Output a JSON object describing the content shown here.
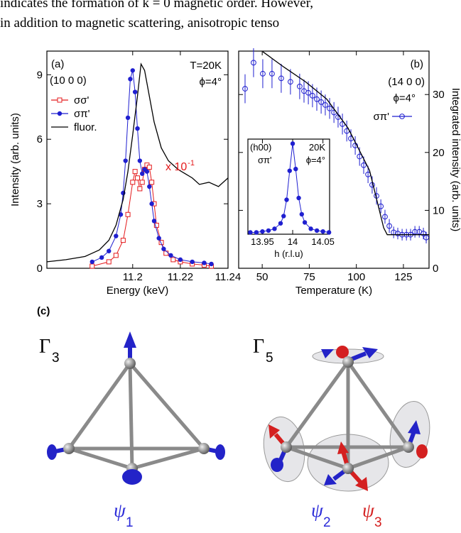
{
  "text": {
    "line1": "indicates the formation of k = 0 magnetic order. However,",
    "line2": "in addition to magnetic scattering, anisotropic tenso"
  },
  "chart_data": [
    {
      "type": "line",
      "xlabel": "Energy (keV)",
      "ylabel": "Intensity (arb. units)",
      "xlim": [
        11.164,
        11.24
      ],
      "ylim": [
        0,
        10.1
      ],
      "xticks": [
        11.2,
        11.22,
        11.24
      ],
      "yticks": [
        0,
        3,
        6,
        9
      ],
      "y_axis_side": "left",
      "annotations": [
        "(a)",
        "(10 0 0)",
        "T=20K",
        "ϕ=4°"
      ],
      "scale_note": {
        "text": "x 10",
        "exponent": "-1",
        "color": "#e41a1c"
      },
      "series": [
        {
          "name": "σσ'",
          "color": "#e41a1c",
          "marker": "open-square",
          "line": true,
          "x": [
            11.183,
            11.19,
            11.193,
            11.196,
            11.198,
            11.2,
            11.201,
            11.202,
            11.203,
            11.204,
            11.205,
            11.206,
            11.207,
            11.208,
            11.209,
            11.21,
            11.212,
            11.214,
            11.217,
            11.22,
            11.225,
            11.23,
            11.233
          ],
          "values": [
            0.1,
            0.3,
            0.6,
            1.3,
            2.5,
            4.0,
            4.5,
            4.2,
            3.7,
            4.0,
            4.6,
            4.8,
            4.7,
            4.0,
            3.0,
            2.0,
            1.2,
            0.7,
            0.4,
            0.3,
            0.2,
            0.15,
            0.1
          ]
        },
        {
          "name": "σπ'",
          "color": "#1f1fd0",
          "marker": "circle",
          "line": true,
          "x": [
            11.183,
            11.187,
            11.19,
            11.193,
            11.195,
            11.196,
            11.197,
            11.198,
            11.199,
            11.2,
            11.201,
            11.202,
            11.203,
            11.204,
            11.205,
            11.206,
            11.207,
            11.208,
            11.209,
            11.211,
            11.213,
            11.216,
            11.22,
            11.225,
            11.23,
            11.233
          ],
          "values": [
            0.3,
            0.5,
            0.8,
            1.5,
            2.5,
            3.5,
            5.0,
            7.0,
            8.8,
            9.2,
            8.2,
            6.5,
            5.0,
            4.4,
            4.6,
            4.5,
            3.8,
            3.0,
            2.2,
            1.4,
            0.9,
            0.6,
            0.4,
            0.3,
            0.25,
            0.2
          ]
        },
        {
          "name": "fluor.",
          "color": "#000000",
          "marker": "none",
          "line": true,
          "x": [
            11.164,
            11.172,
            11.18,
            11.186,
            11.19,
            11.193,
            11.196,
            11.198,
            11.2,
            11.202,
            11.2035,
            11.205,
            11.207,
            11.209,
            11.212,
            11.215,
            11.219,
            11.222,
            11.225,
            11.228,
            11.232,
            11.236,
            11.24
          ],
          "values": [
            0.3,
            0.4,
            0.55,
            0.85,
            1.3,
            2.0,
            3.2,
            4.5,
            6.2,
            8.0,
            9.5,
            9.2,
            8.0,
            6.8,
            5.6,
            5.0,
            4.6,
            4.4,
            4.2,
            3.9,
            4.0,
            3.8,
            4.2
          ]
        }
      ]
    },
    {
      "type": "scatter",
      "xlabel": "Temperature (K)",
      "ylabel": "Integrated intensity (arb. units)",
      "xlim": [
        37.5,
        138.6
      ],
      "ylim": [
        0,
        37.5
      ],
      "xticks": [
        50,
        75,
        100,
        125
      ],
      "yticks": [
        0,
        10,
        20,
        30
      ],
      "y_axis_side": "right",
      "annotations": [
        "(b)",
        "(14 0 0)",
        "ϕ=4°"
      ],
      "series": [
        {
          "name": "σπ'",
          "color": "#1f1fd0",
          "marker": "open-circle",
          "line": false,
          "x": [
            40.9,
            45.4,
            50.3,
            55.2,
            60.1,
            65.0,
            69.9,
            72.2,
            74.5,
            76.7,
            79.0,
            81.3,
            83.5,
            85.8,
            88.1,
            90.3,
            92.6,
            94.9,
            97.1,
            99.4,
            101.7,
            103.9,
            106.2,
            108.4,
            110.7,
            113.0,
            115.2,
            117.5,
            119.8,
            122.0,
            124.3,
            126.6,
            128.8,
            131.1,
            133.4,
            135.6,
            137.1
          ],
          "values": [
            31.0,
            35.5,
            33.6,
            33.6,
            32.8,
            32.2,
            31.4,
            30.6,
            30.3,
            29.8,
            29.2,
            28.7,
            28.2,
            27.6,
            26.9,
            26.1,
            24.9,
            23.7,
            22.4,
            21.2,
            19.3,
            17.8,
            16.2,
            14.4,
            12.5,
            10.7,
            8.9,
            7.3,
            6.2,
            6.0,
            5.8,
            5.8,
            5.8,
            6.3,
            6.3,
            6.0,
            5.3
          ],
          "errors": [
            2.5,
            2.5,
            2.5,
            2.5,
            2.5,
            2.2,
            2.2,
            2.0,
            2.0,
            2.0,
            2.0,
            2.0,
            1.8,
            1.8,
            1.8,
            1.8,
            1.8,
            1.8,
            1.6,
            1.6,
            1.6,
            1.5,
            1.5,
            1.5,
            1.5,
            1.2,
            1.2,
            1.2,
            1.0,
            1.0,
            1.0,
            1.0,
            1.0,
            1.0,
            1.0,
            1.0,
            1.0
          ]
        },
        {
          "color": "#000000",
          "marker": "none",
          "line": true,
          "x": [
            50.3,
            61.7,
            73.0,
            84.3,
            95.6,
            107.0,
            114.5,
            116.4,
            138.6
          ],
          "values": [
            37.4,
            34.7,
            32.2,
            29.2,
            24.2,
            16.9,
            7.0,
            5.8,
            5.8
          ]
        }
      ]
    },
    {
      "type": "scatter",
      "xlabel": "h (r.l.u)",
      "xlim": [
        13.926,
        14.061
      ],
      "ylim": [
        0,
        1.05
      ],
      "xticks": [
        13.95,
        14,
        14.05
      ],
      "annotations": [
        "(h00)",
        "σπ'",
        "20K",
        "ϕ=4°"
      ],
      "series": [
        {
          "color": "#1f1fd0",
          "marker": "circle",
          "line": true,
          "x": [
            13.93,
            13.94,
            13.95,
            13.96,
            13.97,
            13.98,
            13.985,
            13.99,
            13.995,
            14.0,
            14.005,
            14.01,
            14.015,
            14.02,
            14.03,
            14.04,
            14.05,
            14.06
          ],
          "values": [
            0.02,
            0.02,
            0.03,
            0.04,
            0.06,
            0.12,
            0.2,
            0.38,
            0.7,
            1.0,
            0.72,
            0.4,
            0.22,
            0.13,
            0.06,
            0.04,
            0.03,
            0.02
          ]
        }
      ]
    }
  ],
  "diagram": {
    "label": "(c)",
    "panels": [
      {
        "symbol": "Γ",
        "subscript": "3",
        "modes": [
          {
            "symbol": "ψ",
            "subscript": "1"
          }
        ]
      },
      {
        "symbol": "Γ",
        "subscript": "5",
        "modes": [
          {
            "symbol": "ψ",
            "subscript": "2"
          },
          {
            "symbol": "ψ",
            "subscript": "3"
          }
        ]
      }
    ]
  }
}
